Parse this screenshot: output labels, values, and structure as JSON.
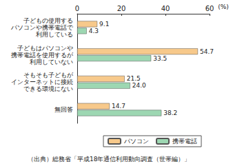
{
  "chart_data": {
    "type": "bar",
    "orientation": "horizontal",
    "categories": [
      "子どもの使用する\nパソコンや携帯電話で\n利用している",
      "子どもはパソコンや\n携帯電話を使用するが\n利用していない",
      "そもそも子どもが\nインターネットに接続\nできる環境にない",
      "無回答"
    ],
    "series": [
      {
        "name": "パソコン",
        "color": "#f7c98b",
        "values": [
          9.1,
          54.7,
          21.5,
          14.7
        ],
        "value_labels": [
          "9.1",
          "54.7",
          "21.5",
          "14.7"
        ]
      },
      {
        "name": "携帯電話",
        "color": "#9dd7b2",
        "values": [
          4.3,
          33.5,
          24.0,
          38.2
        ],
        "value_labels": [
          "4.3",
          "33.5",
          "24.0",
          "38.2"
        ]
      }
    ],
    "x_label": "(%)",
    "xlim": [
      0,
      60
    ],
    "xticks": [
      0,
      20,
      40,
      60
    ],
    "grid": false,
    "legend": "bottom",
    "data_labels": true,
    "source": "（出典）総務省「平成18年通信利用動向調査（世帯編）」"
  }
}
